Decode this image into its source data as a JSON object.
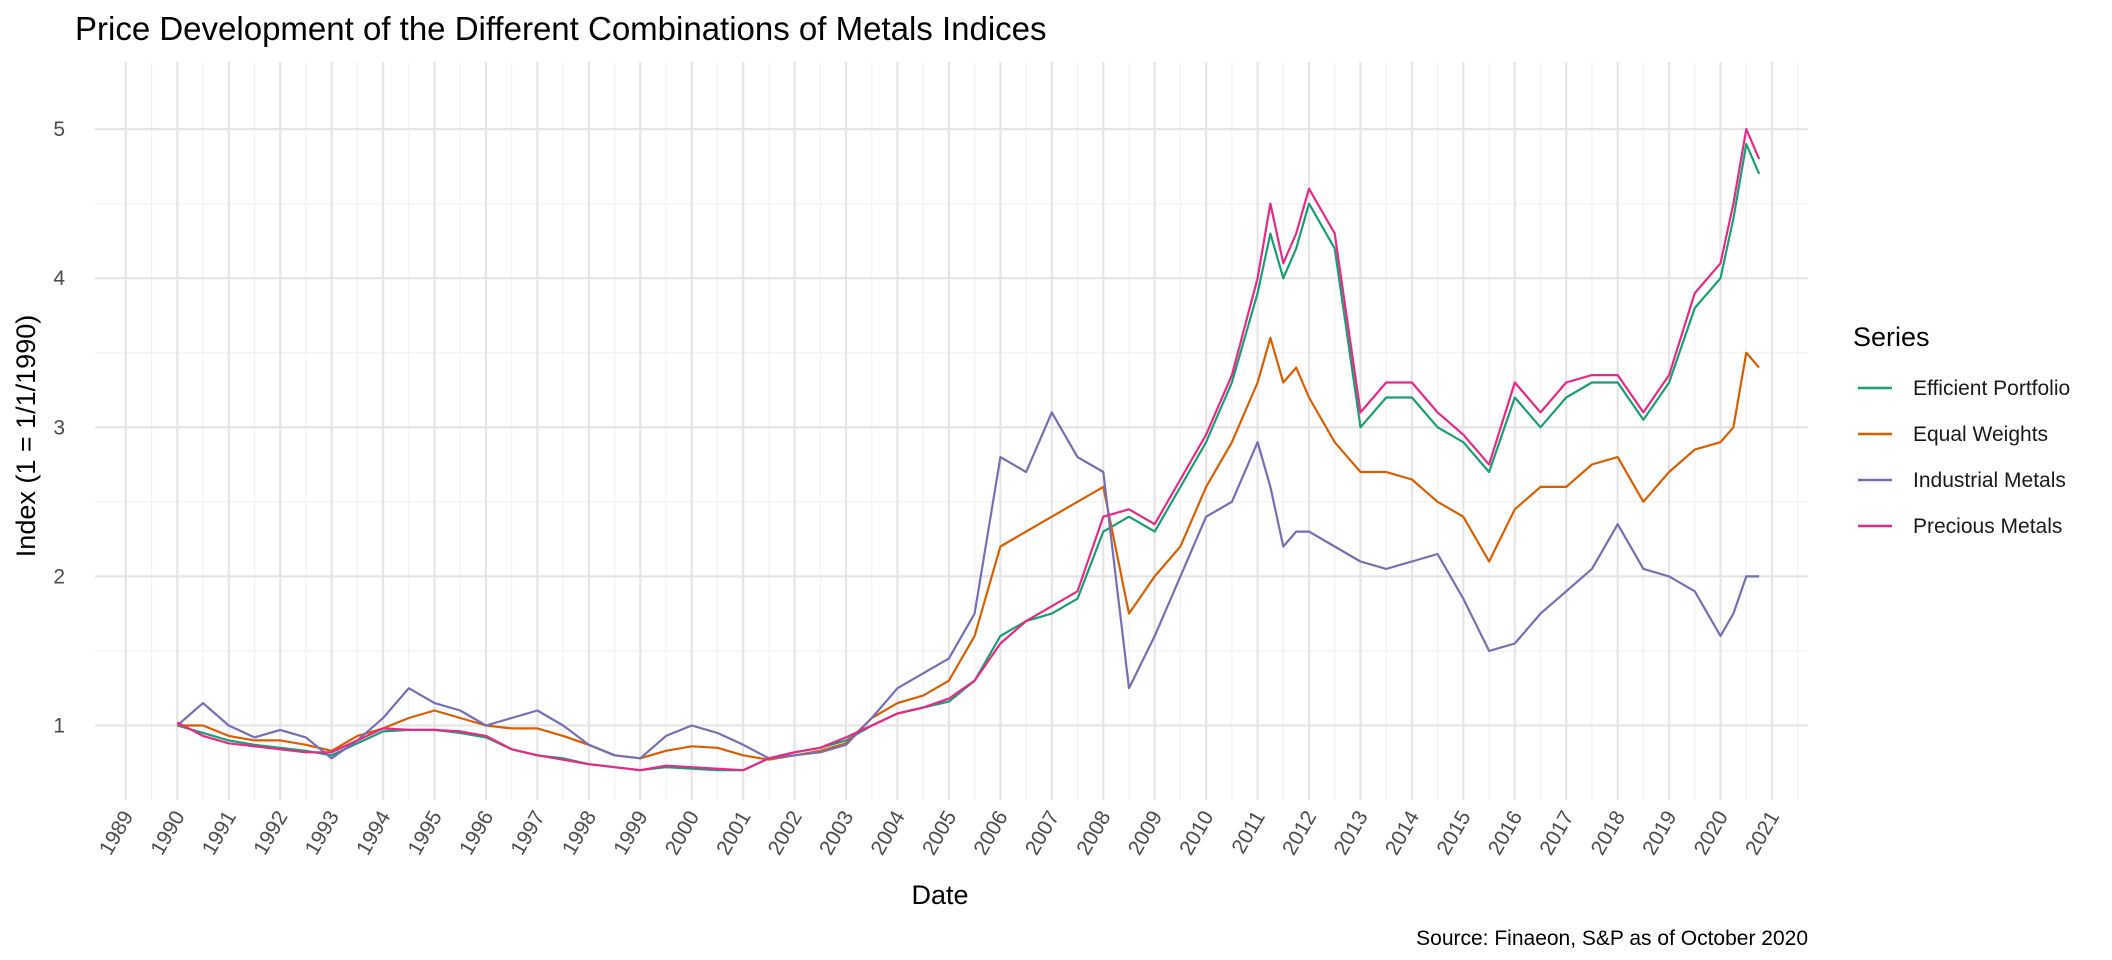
{
  "chart_data": {
    "type": "line",
    "title": "Price Development of the Different Combinations of Metals Indices",
    "xlabel": "Date",
    "ylabel": "Index (1 = 1/1/1990)",
    "caption": "Source: Finaeon, S&P as of October 2020",
    "legend_title": "Series",
    "legend_position": "right",
    "grid": true,
    "xlim": [
      1988.4,
      2021.7
    ],
    "ylim": [
      0.5,
      5.45
    ],
    "x_ticks": [
      "1989",
      "1990",
      "1991",
      "1992",
      "1993",
      "1994",
      "1995",
      "1996",
      "1997",
      "1998",
      "1999",
      "2000",
      "2001",
      "2002",
      "2003",
      "2004",
      "2005",
      "2006",
      "2007",
      "2008",
      "2009",
      "2010",
      "2011",
      "2012",
      "2013",
      "2014",
      "2015",
      "2016",
      "2017",
      "2018",
      "2019",
      "2020",
      "2021"
    ],
    "y_ticks": [
      "1",
      "2",
      "3",
      "4",
      "5"
    ],
    "x": [
      1990.0,
      1990.5,
      1991.0,
      1991.5,
      1992.0,
      1992.5,
      1993.0,
      1993.5,
      1994.0,
      1994.5,
      1995.0,
      1995.5,
      1996.0,
      1996.5,
      1997.0,
      1997.5,
      1998.0,
      1998.5,
      1999.0,
      1999.5,
      2000.0,
      2000.5,
      2001.0,
      2001.5,
      2002.0,
      2002.5,
      2003.0,
      2003.5,
      2004.0,
      2004.5,
      2005.0,
      2005.5,
      2006.0,
      2006.5,
      2007.0,
      2007.5,
      2008.0,
      2008.5,
      2009.0,
      2009.5,
      2010.0,
      2010.5,
      2011.0,
      2011.25,
      2011.5,
      2011.75,
      2012.0,
      2012.5,
      2013.0,
      2013.5,
      2014.0,
      2014.5,
      2015.0,
      2015.5,
      2016.0,
      2016.5,
      2017.0,
      2017.5,
      2018.0,
      2018.5,
      2019.0,
      2019.5,
      2020.0,
      2020.25,
      2020.5,
      2020.75
    ],
    "series": [
      {
        "name": "Efficient Portfolio",
        "color": "#1b9e77",
        "values": [
          1.0,
          0.95,
          0.9,
          0.87,
          0.85,
          0.83,
          0.8,
          0.88,
          0.96,
          0.97,
          0.97,
          0.95,
          0.92,
          0.84,
          0.8,
          0.78,
          0.74,
          0.72,
          0.7,
          0.72,
          0.71,
          0.7,
          0.7,
          0.78,
          0.82,
          0.85,
          0.9,
          1.0,
          1.08,
          1.12,
          1.16,
          1.3,
          1.6,
          1.7,
          1.75,
          1.85,
          2.3,
          2.4,
          2.3,
          2.6,
          2.9,
          3.3,
          3.9,
          4.3,
          4.0,
          4.2,
          4.5,
          4.2,
          3.0,
          3.2,
          3.2,
          3.0,
          2.9,
          2.7,
          3.2,
          3.0,
          3.2,
          3.3,
          3.3,
          3.05,
          3.3,
          3.8,
          4.0,
          4.4,
          4.9,
          4.7
        ]
      },
      {
        "name": "Equal Weights",
        "color": "#d95f02",
        "values": [
          1.0,
          1.0,
          0.93,
          0.9,
          0.9,
          0.87,
          0.83,
          0.93,
          0.98,
          1.05,
          1.1,
          1.05,
          1.0,
          0.98,
          0.98,
          0.93,
          0.87,
          0.8,
          0.78,
          0.83,
          0.86,
          0.85,
          0.8,
          0.77,
          0.8,
          0.83,
          0.88,
          1.05,
          1.15,
          1.2,
          1.3,
          1.6,
          2.2,
          2.3,
          2.4,
          2.5,
          2.6,
          1.75,
          2.0,
          2.2,
          2.6,
          2.9,
          3.3,
          3.6,
          3.3,
          3.4,
          3.2,
          2.9,
          2.7,
          2.7,
          2.65,
          2.5,
          2.4,
          2.1,
          2.45,
          2.6,
          2.6,
          2.75,
          2.8,
          2.5,
          2.7,
          2.85,
          2.9,
          3.0,
          3.5,
          3.4
        ]
      },
      {
        "name": "Industrial Metals",
        "color": "#7570b3",
        "values": [
          1.0,
          1.15,
          1.0,
          0.92,
          0.97,
          0.92,
          0.78,
          0.9,
          1.05,
          1.25,
          1.15,
          1.1,
          1.0,
          1.05,
          1.1,
          1.0,
          0.87,
          0.8,
          0.78,
          0.93,
          1.0,
          0.95,
          0.87,
          0.78,
          0.8,
          0.82,
          0.87,
          1.05,
          1.25,
          1.35,
          1.45,
          1.75,
          2.8,
          2.7,
          3.1,
          2.8,
          2.7,
          1.25,
          1.6,
          2.0,
          2.4,
          2.5,
          2.9,
          2.6,
          2.2,
          2.3,
          2.3,
          2.2,
          2.1,
          2.05,
          2.1,
          2.15,
          1.85,
          1.5,
          1.55,
          1.75,
          1.9,
          2.05,
          2.35,
          2.05,
          2.0,
          1.9,
          1.6,
          1.75,
          2.0,
          2.0
        ]
      },
      {
        "name": "Precious Metals",
        "color": "#e7298a",
        "values": [
          1.02,
          0.93,
          0.88,
          0.86,
          0.84,
          0.82,
          0.82,
          0.9,
          0.98,
          0.97,
          0.97,
          0.96,
          0.93,
          0.84,
          0.8,
          0.77,
          0.74,
          0.72,
          0.7,
          0.73,
          0.72,
          0.71,
          0.7,
          0.78,
          0.82,
          0.85,
          0.92,
          1.0,
          1.08,
          1.12,
          1.18,
          1.3,
          1.55,
          1.7,
          1.8,
          1.9,
          2.4,
          2.45,
          2.35,
          2.65,
          2.95,
          3.35,
          4.0,
          4.5,
          4.1,
          4.3,
          4.6,
          4.3,
          3.1,
          3.3,
          3.3,
          3.1,
          2.95,
          2.75,
          3.3,
          3.1,
          3.3,
          3.35,
          3.35,
          3.1,
          3.35,
          3.9,
          4.1,
          4.5,
          5.0,
          4.8
        ]
      }
    ]
  }
}
